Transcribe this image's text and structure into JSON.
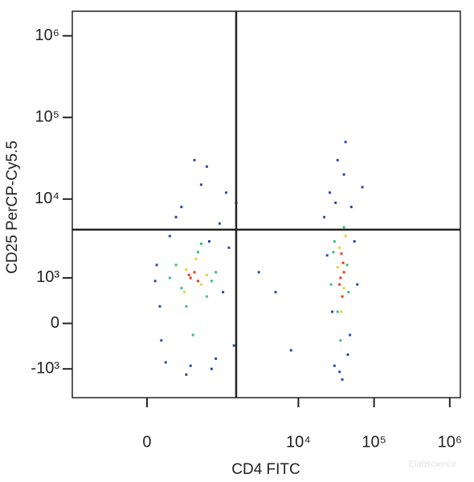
{
  "chart_data": {
    "type": "scatter",
    "x_label": "CD4 FITC",
    "y_label": "CD25 PerCP-Cy5.5",
    "watermark": "Elabscience",
    "xscale": "biexponential",
    "yscale": "biexponential",
    "xlim": [
      -960,
      1380000
    ],
    "ylim": [
      -2400,
      2000000
    ],
    "xticks": [
      0,
      {
        "value": 10000,
        "label": "10⁴"
      },
      {
        "value": 100000,
        "label": "10⁵"
      },
      {
        "value": 1000000,
        "label": "10⁶"
      }
    ],
    "yticks": [
      {
        "value": -1000,
        "label": "-10³"
      },
      0,
      {
        "value": 1000,
        "label": "10³"
      },
      {
        "value": 10000,
        "label": "10⁴"
      },
      {
        "value": 100000,
        "label": "10⁵"
      },
      {
        "value": 1000000,
        "label": "10⁶"
      }
    ],
    "gates": {
      "x": 1500,
      "y": 4200,
      "color": "#222222"
    },
    "series": [
      {
        "color": "#2b4aa8",
        "x": [
          60,
          120,
          900,
          1500,
          80,
          300,
          700,
          1200,
          150,
          500,
          1000,
          250,
          90,
          600,
          1400,
          400,
          200,
          800,
          1100,
          350,
          50,
          650,
          22000,
          55000,
          30000,
          45000,
          26000,
          60000,
          35000,
          40000,
          28000,
          50000,
          33000,
          24000,
          48000,
          38000,
          31000,
          42000,
          5000,
          3000,
          8000,
          70000
        ],
        "y": [
          1500,
          -800,
          5000,
          9000,
          300,
          -1200,
          -1000,
          2500,
          3500,
          15000,
          600,
          8000,
          -300,
          25000,
          -400,
          30000,
          6000,
          -700,
          12000,
          -900,
          900,
          3000,
          6000,
          3000,
          -900,
          -600,
          12000,
          800,
          -1100,
          20000,
          200,
          8000,
          30000,
          2000,
          -200,
          -1400,
          9000,
          50000,
          600,
          1200,
          -500,
          14000
        ]
      },
      {
        "color": "#3fbf7f",
        "x": [
          200,
          450,
          600,
          300,
          800,
          250,
          500,
          700,
          380,
          150,
          30000,
          44000,
          36000,
          27000,
          40000,
          33000,
          46000,
          29000
        ],
        "y": [
          1500,
          2200,
          500,
          300,
          1200,
          700,
          2800,
          900,
          -200,
          1000,
          3000,
          1500,
          -300,
          800,
          4500,
          200,
          600,
          2200
        ]
      },
      {
        "color": "#e6d23a",
        "x": [
          300,
          500,
          420,
          280,
          600,
          35000,
          40000,
          33000,
          42000,
          37000
        ],
        "y": [
          1300,
          800,
          1800,
          600,
          1100,
          2500,
          700,
          1400,
          3500,
          200
        ]
      },
      {
        "color": "#e83a1e",
        "x": [
          350,
          400,
          450,
          330,
          36000,
          39000,
          38000,
          37000,
          40000,
          35000
        ],
        "y": [
          1000,
          1200,
          900,
          1100,
          1000,
          1600,
          500,
          2100,
          1200,
          800
        ]
      }
    ]
  }
}
